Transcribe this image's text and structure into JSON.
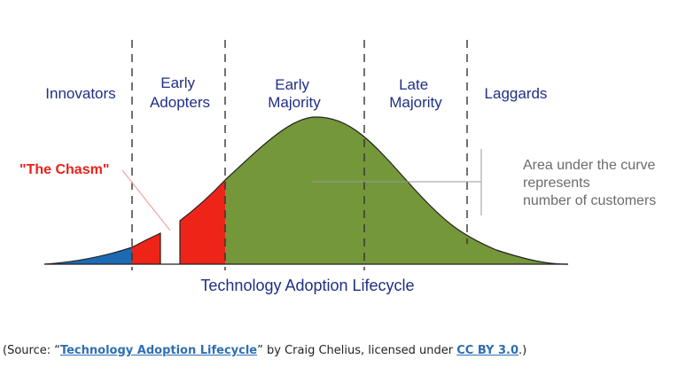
{
  "diagram": {
    "segments": [
      {
        "id": "innovators",
        "lines": [
          "Innovators"
        ]
      },
      {
        "id": "early-adopters",
        "lines": [
          "Early",
          "Adopters"
        ]
      },
      {
        "id": "early-majority",
        "lines": [
          "Early",
          "Majority"
        ]
      },
      {
        "id": "late-majority",
        "lines": [
          "Late",
          "Majority"
        ]
      },
      {
        "id": "laggards",
        "lines": [
          "Laggards"
        ]
      }
    ],
    "chasm_label": "\"The Chasm\"",
    "area_note": [
      "Area under the curve",
      "represents",
      "number of customers"
    ],
    "caption": "Technology Adoption Lifecycle",
    "colors": {
      "innovators": "#1b6ab3",
      "early_adopters": "#ef2419",
      "majority": "#74973a",
      "outline": "#222222",
      "label": "#1f2f86",
      "chasm": "#e8211a",
      "note": "#6b6b6b"
    }
  },
  "source": {
    "prefix": "(Source: “",
    "title_link": "Technology Adoption Lifecycle",
    "middle": "” by Craig Chelius, licensed under ",
    "license_link": "CC BY 3.0",
    "suffix": ".)"
  }
}
